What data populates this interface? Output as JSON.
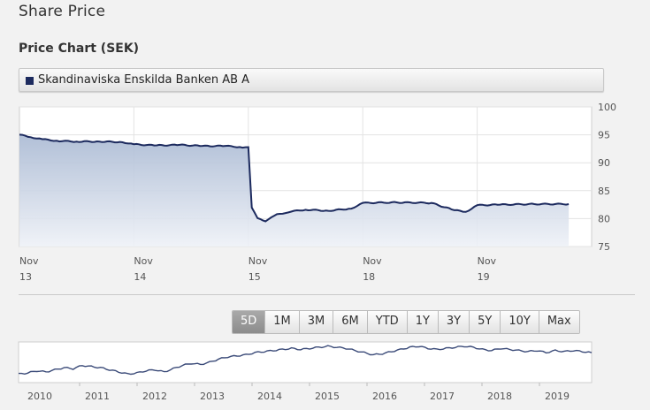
{
  "page": {
    "title": "Share Price"
  },
  "chart_heading": "Price Chart (SEK)",
  "legend": {
    "label": "Skandinaviska Enskilda Banken AB A",
    "color": "#1c2a5e"
  },
  "range_buttons": [
    "5D",
    "1M",
    "3M",
    "6M",
    "YTD",
    "1Y",
    "3Y",
    "5Y",
    "10Y",
    "Max"
  ],
  "active_range": "5D",
  "chart_data": {
    "type": "area",
    "title": "",
    "xlabel": "",
    "ylabel": "",
    "ylim": [
      75,
      100
    ],
    "yticks": [
      75,
      80,
      85,
      90,
      95,
      100
    ],
    "xticks": [
      [
        "Nov",
        "13"
      ],
      [
        "Nov",
        "14"
      ],
      [
        "Nov",
        "15"
      ],
      [
        "Nov",
        "18"
      ],
      [
        "Nov",
        "19"
      ]
    ],
    "grid": true,
    "series": [
      {
        "x": [
          0,
          0.1,
          0.2,
          0.35,
          0.5,
          0.7,
          0.9,
          1.0,
          1.2,
          1.4,
          1.6,
          1.8,
          1.95,
          2.0,
          2.03,
          2.08,
          2.15,
          2.25,
          2.35,
          2.5,
          2.7,
          2.9,
          3.0,
          3.3,
          3.6,
          3.8,
          3.9,
          4.0,
          4.2,
          4.5,
          4.8
        ],
        "values": [
          95.0,
          94.6,
          94.2,
          93.9,
          93.8,
          93.8,
          93.7,
          93.3,
          93.1,
          93.2,
          93.0,
          93.0,
          92.8,
          92.8,
          82.0,
          80.0,
          79.6,
          80.7,
          81.2,
          81.6,
          81.4,
          81.8,
          82.8,
          82.9,
          82.8,
          81.5,
          81.2,
          82.4,
          82.5,
          82.6,
          82.6
        ]
      }
    ],
    "navigator": {
      "x_labels": [
        "2010",
        "2011",
        "2012",
        "2013",
        "2014",
        "2015",
        "2016",
        "2017",
        "2018",
        "2019"
      ],
      "values": [
        62,
        63,
        65,
        64,
        66,
        68,
        67,
        70,
        69,
        68,
        66,
        64,
        62,
        63,
        65,
        66,
        64,
        67,
        70,
        72,
        71,
        73,
        76,
        78,
        79,
        80,
        82,
        83,
        84,
        85,
        86,
        85,
        86,
        87,
        88,
        87,
        86,
        84,
        82,
        80,
        81,
        83,
        85,
        87,
        88,
        86,
        85,
        86,
        87,
        88,
        87,
        85,
        84,
        86,
        85,
        84,
        83,
        84,
        82,
        84,
        83,
        84,
        83,
        82
      ]
    }
  }
}
